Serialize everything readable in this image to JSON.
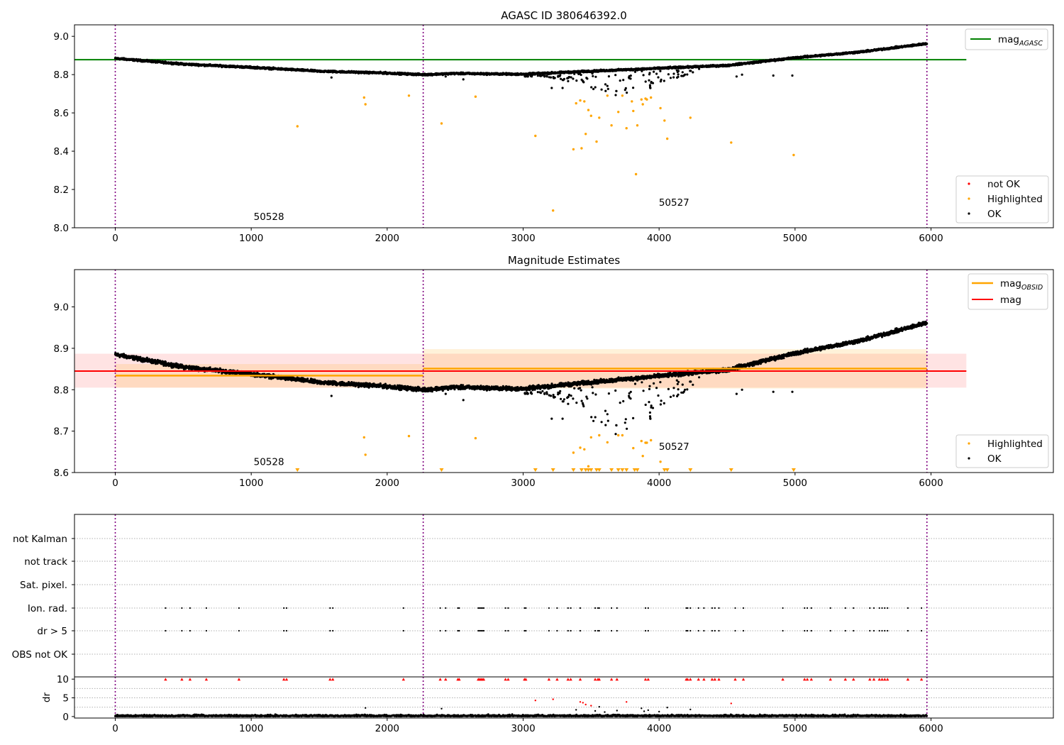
{
  "chart_data": [
    {
      "type": "scatter",
      "title": "AGASC ID 380646392.0",
      "xlim": [
        -300,
        6900
      ],
      "ylim": [
        8.0,
        9.06
      ],
      "xticks": [
        0,
        1000,
        2000,
        3000,
        4000,
        5000,
        6000
      ],
      "yticks": [
        8.0,
        8.2,
        8.4,
        8.6,
        8.8,
        9.0
      ],
      "obsid_boundaries": [
        0,
        2265,
        5970
      ],
      "obsid_labels": [
        {
          "text": "50528",
          "x": 1130,
          "y": 8.04
        },
        {
          "text": "50527",
          "x": 4110,
          "y": 8.115
        }
      ],
      "reference_line": {
        "label": "mag",
        "label_sub": "AGASC",
        "y": 8.878,
        "x_range": [
          -300,
          6260
        ],
        "color": "#008000"
      },
      "legend_lines": [
        {
          "label": "mag",
          "label_sub": "AGASC",
          "color": "#008000"
        }
      ],
      "legend_points": [
        {
          "label": "not OK",
          "color": "#ff0000"
        },
        {
          "label": "Highlighted",
          "color": "#ffa500"
        },
        {
          "label": "OK",
          "color": "#000000"
        }
      ],
      "ok_trend": {
        "x": [
          0,
          500,
          1000,
          1500,
          2000,
          2265,
          2500,
          3000,
          3500,
          4000,
          4500,
          5000,
          5500,
          5970
        ],
        "y": [
          8.885,
          8.855,
          8.838,
          8.818,
          8.808,
          8.8,
          8.806,
          8.802,
          8.818,
          8.833,
          8.848,
          8.888,
          8.92,
          8.962
        ]
      },
      "highlighted": {
        "x": [
          1340,
          1830,
          1840,
          2160,
          2400,
          2650,
          3090,
          3220,
          3370,
          3390,
          3420,
          3430,
          3450,
          3460,
          3480,
          3500,
          3540,
          3560,
          3620,
          3650,
          3700,
          3730,
          3760,
          3800,
          3810,
          3830,
          3840,
          3870,
          3880,
          3900,
          3910,
          3940,
          4010,
          4040,
          4060,
          4230,
          4530,
          4990
        ],
        "y": [
          8.53,
          8.68,
          8.645,
          8.69,
          8.545,
          8.685,
          8.48,
          8.09,
          8.41,
          8.65,
          8.665,
          8.415,
          8.66,
          8.49,
          8.615,
          8.585,
          8.45,
          8.575,
          8.69,
          8.535,
          8.605,
          8.69,
          8.52,
          8.66,
          8.61,
          8.28,
          8.535,
          8.67,
          8.645,
          8.675,
          8.67,
          8.68,
          8.625,
          8.56,
          8.465,
          8.575,
          8.445,
          8.38
        ]
      }
    },
    {
      "type": "scatter",
      "title": "Magnitude Estimates",
      "xlim": [
        -300,
        6900
      ],
      "ylim": [
        8.6,
        9.09
      ],
      "xticks": [
        0,
        1000,
        2000,
        3000,
        4000,
        5000,
        6000
      ],
      "yticks": [
        8.6,
        8.7,
        8.8,
        8.9,
        9.0
      ],
      "obsid_boundaries": [
        0,
        2265,
        5970
      ],
      "obsid_labels": [
        {
          "text": "50528",
          "x": 1130,
          "y": 8.618
        },
        {
          "text": "50527",
          "x": 4110,
          "y": 8.655
        }
      ],
      "mag": {
        "label": "mag",
        "y": 8.845,
        "band": [
          8.805,
          8.887
        ],
        "x_range": [
          -300,
          6260
        ],
        "color": "#ff0000"
      },
      "mag_obsid": {
        "label": "mag",
        "label_sub": "OBSID",
        "color": "#ffa500",
        "segments": [
          {
            "x": [
              0,
              2265
            ],
            "y": 8.834,
            "band": [
              8.805,
              8.862
            ]
          },
          {
            "x": [
              2265,
              5970
            ],
            "y": 8.851,
            "band": [
              8.803,
              8.898
            ]
          }
        ]
      },
      "legend_lines": [
        {
          "label": "mag",
          "label_sub": "OBSID",
          "color": "#ffa500"
        },
        {
          "label": "mag",
          "label_sub": "",
          "color": "#ff0000"
        }
      ],
      "legend_points": [
        {
          "label": "Highlighted",
          "color": "#ffa500"
        },
        {
          "label": "OK",
          "color": "#000000"
        }
      ],
      "ok_trend": {
        "x": [
          0,
          500,
          1000,
          1500,
          2000,
          2265,
          2500,
          3000,
          3500,
          4000,
          4500,
          5000,
          5500,
          5970
        ],
        "y": [
          8.885,
          8.855,
          8.838,
          8.818,
          8.808,
          8.8,
          8.806,
          8.802,
          8.818,
          8.833,
          8.848,
          8.888,
          8.92,
          8.962
        ]
      },
      "highlighted": {
        "x": [
          1830,
          1840,
          2160,
          2650,
          3370,
          3420,
          3450,
          3480,
          3500,
          3560,
          3620,
          3700,
          3730,
          3810,
          3870,
          3880,
          3900,
          3910,
          3940,
          4010
        ],
        "y": [
          8.685,
          8.643,
          8.688,
          8.683,
          8.648,
          8.66,
          8.656,
          8.615,
          8.685,
          8.69,
          8.673,
          8.69,
          8.69,
          8.659,
          8.676,
          8.64,
          8.672,
          8.672,
          8.678,
          8.626
        ]
      },
      "offscale_markers_x": [
        1340,
        2400,
        3090,
        3220,
        3370,
        3430,
        3460,
        3480,
        3500,
        3540,
        3560,
        3650,
        3700,
        3730,
        3760,
        3820,
        3840,
        4040,
        4060,
        4230,
        4530,
        4990
      ]
    },
    {
      "type": "scatter",
      "title": "",
      "xlim": [
        -300,
        6900
      ],
      "categories": [
        "not Kalman",
        "not track",
        "Sat. pixel.",
        "Ion. rad.",
        "dr > 5",
        "OBS not OK"
      ],
      "obsid_boundaries": [
        0,
        2265,
        5970
      ],
      "ion_rad_x": [
        370,
        490,
        550,
        670,
        910,
        1240,
        1260,
        1580,
        1600,
        2120,
        2390,
        2430,
        2520,
        2530,
        2670,
        2680,
        2690,
        2700,
        2710,
        2870,
        2890,
        3010,
        3020,
        3190,
        3250,
        3330,
        3350,
        3420,
        3530,
        3550,
        3560,
        3650,
        3690,
        3900,
        3920,
        4200,
        4210,
        4230,
        4290,
        4330,
        4390,
        4410,
        4440,
        4560,
        4620,
        4910,
        5070,
        5090,
        5120,
        5260,
        5370,
        5430,
        5550,
        5580,
        5620,
        5640,
        5660,
        5680,
        5830,
        5930
      ]
    },
    {
      "type": "scatter",
      "title": "",
      "xlim": [
        -300,
        6900
      ],
      "ylim": [
        -0.4,
        10.6
      ],
      "ylabel": "dr",
      "xticks": [
        0,
        1000,
        2000,
        3000,
        4000,
        5000,
        6000
      ],
      "yticks": [
        0,
        5,
        10
      ],
      "obsid_boundaries": [
        0,
        2265,
        5970
      ],
      "clipped_at": 10,
      "red_scatter": {
        "x": [
          3090,
          3220,
          3420,
          3440,
          3460,
          3500,
          3760,
          4530
        ],
        "y": [
          4.3,
          4.6,
          3.9,
          3.7,
          3.2,
          2.9,
          3.9,
          3.5
        ]
      },
      "outliers_black": {
        "x": [
          1840,
          2400,
          3390,
          3530,
          3560,
          3600,
          3690,
          3870,
          3890,
          3920,
          4000,
          4060,
          4230
        ],
        "y": [
          2.3,
          2.1,
          1.8,
          1.5,
          2.6,
          1.2,
          1.6,
          2.2,
          1.4,
          1.7,
          1.3,
          2.4,
          1.9
        ]
      }
    }
  ]
}
